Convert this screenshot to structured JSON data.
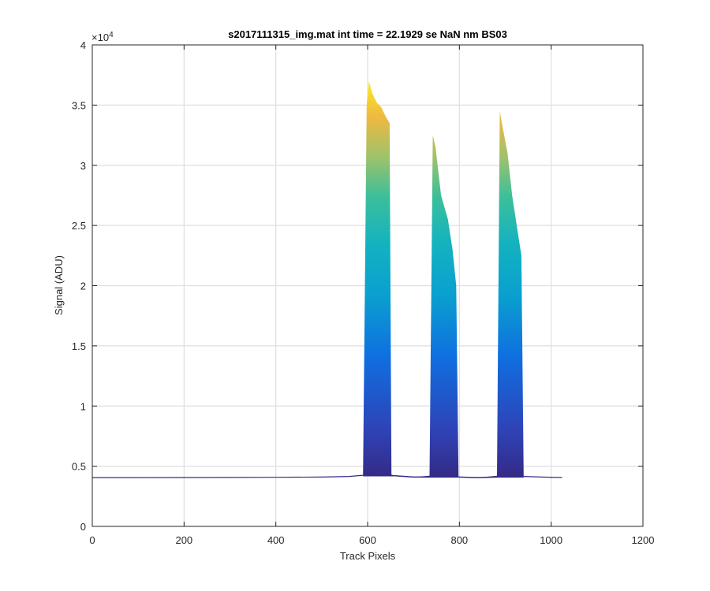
{
  "chart_data": {
    "type": "area",
    "title": "s2017111315_img.mat int time = 22.1929 se  NaN nm BS03",
    "xlabel": "Track Pixels",
    "ylabel": "Signal (ADU)",
    "xlim": [
      0,
      1200
    ],
    "ylim": [
      0,
      40000
    ],
    "y_exponent_label": "×10",
    "y_exponent_power": "4",
    "grid": true,
    "colormap": "parula",
    "xticks": [
      0,
      200,
      400,
      600,
      800,
      1000,
      1200
    ],
    "xtick_labels": [
      "0",
      "200",
      "400",
      "600",
      "800",
      "1000",
      "1200"
    ],
    "yticks": [
      0,
      5000,
      10000,
      15000,
      20000,
      25000,
      30000,
      35000,
      40000
    ],
    "ytick_labels": [
      "0",
      "0.5",
      "1",
      "1.5",
      "2",
      "2.5",
      "3",
      "3.5",
      "4"
    ],
    "baseline": {
      "x": [
        0,
        100,
        200,
        300,
        400,
        500,
        560,
        590
      ],
      "y": [
        4050,
        4055,
        4060,
        4065,
        4080,
        4100,
        4150,
        4250
      ]
    },
    "peaks": [
      {
        "x": [
          590,
          598,
          603,
          610,
          620,
          630,
          640,
          648,
          652,
          660
        ],
        "top": [
          4300,
          35000,
          37000,
          36000,
          35200,
          34800,
          34000,
          33500,
          4300,
          4200
        ],
        "bottom": [
          4200,
          4200,
          4200,
          4200,
          4200,
          4200,
          4200,
          4200,
          4200,
          4200
        ]
      },
      {
        "x": [
          660,
          700,
          735,
          742,
          748,
          760,
          775,
          785,
          793,
          798
        ],
        "top": [
          4200,
          4100,
          4200,
          32500,
          31500,
          27500,
          25500,
          23000,
          20000,
          4200
        ],
        "bottom": [
          4200,
          4100,
          4100,
          4100,
          4100,
          4100,
          4100,
          4100,
          4100,
          4100
        ]
      },
      {
        "x": [
          798,
          840,
          882,
          888,
          895,
          905,
          915,
          925,
          935,
          940
        ],
        "top": [
          4100,
          4050,
          4200,
          34500,
          33000,
          31000,
          27500,
          25000,
          22500,
          4200
        ],
        "bottom": [
          4100,
          4050,
          4100,
          4100,
          4100,
          4100,
          4100,
          4100,
          4100,
          4100
        ]
      }
    ],
    "tail": {
      "x": [
        940,
        980,
        1024
      ],
      "y": [
        4150,
        4100,
        4060
      ]
    }
  }
}
